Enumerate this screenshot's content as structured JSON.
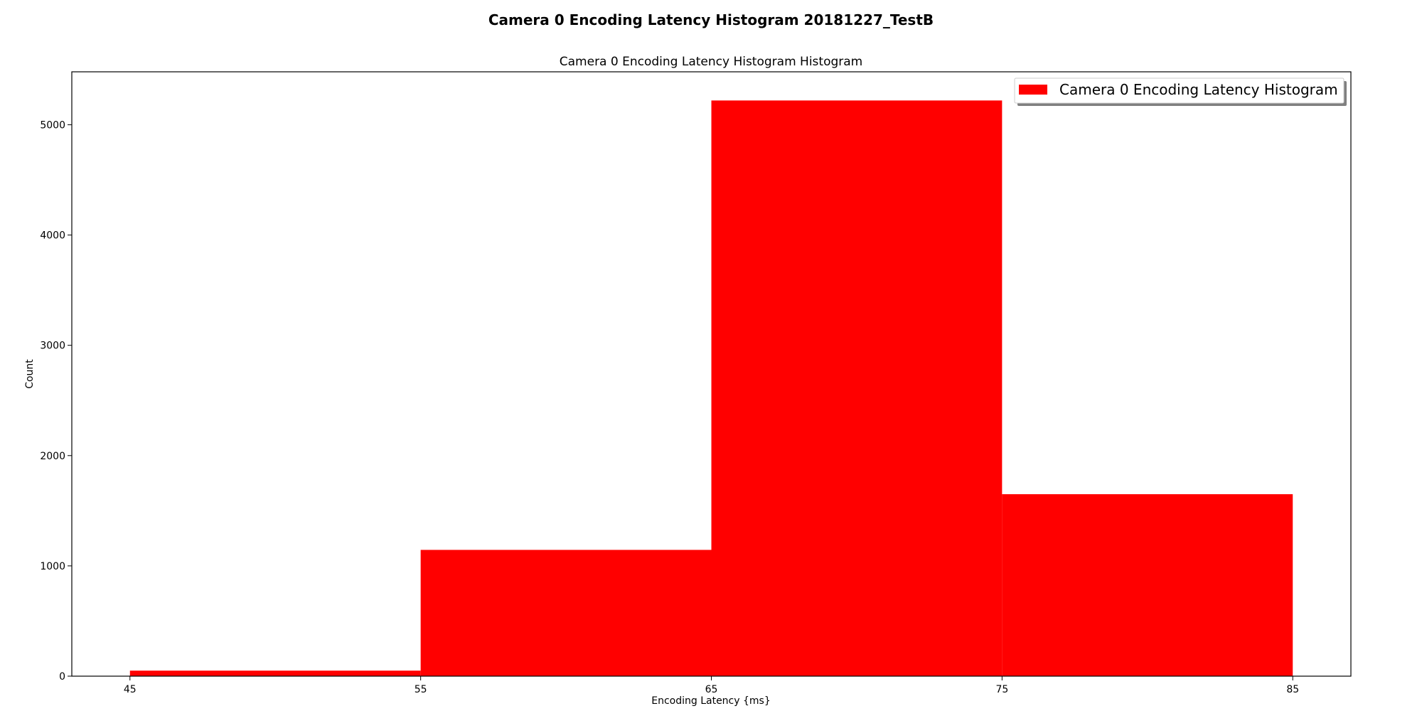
{
  "figure": {
    "suptitle": "Camera 0 Encoding Latency Histogram 20181227_TestB"
  },
  "chart_data": {
    "type": "bar",
    "title": "Camera 0 Encoding Latency Histogram Histogram",
    "xlabel": "Encoding Latency {ms}",
    "ylabel": "Count",
    "bin_edges": [
      45,
      55,
      65,
      75,
      85
    ],
    "values": [
      50,
      1145,
      5220,
      1650
    ],
    "xlim": [
      43,
      87
    ],
    "ylim": [
      0,
      5480
    ],
    "x_ticks": [
      45,
      55,
      65,
      75,
      85
    ],
    "y_ticks": [
      0,
      1000,
      2000,
      3000,
      4000,
      5000
    ],
    "grid": false,
    "legend": {
      "position": "top-right",
      "entries": [
        {
          "label": "Camera 0 Encoding Latency Histogram",
          "color": "#ff0000"
        }
      ]
    },
    "series": [
      {
        "name": "Camera 0 Encoding Latency Histogram",
        "color": "#ff0000"
      }
    ]
  }
}
